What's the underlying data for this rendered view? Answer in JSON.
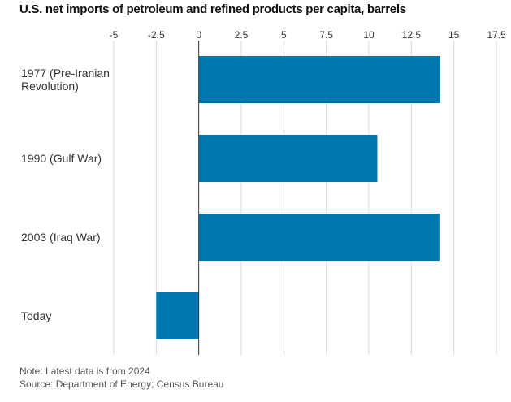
{
  "title": "U.S. net imports of petroleum and refined products per capita, barrels",
  "note": "Note: Latest data is from 2024",
  "source": "Source: Department of Energy; Census Bureau",
  "bar_color": "#0077AF",
  "chart_data": {
    "type": "bar",
    "orientation": "horizontal",
    "title": "U.S. net imports of petroleum and refined products per capita, barrels",
    "categories": [
      "1977 (Pre-Iranian Revolution)",
      "1990 (Gulf War)",
      "2003 (Iraq War)",
      "Today"
    ],
    "category_lines": [
      [
        "1977 (Pre-Iranian",
        "Revolution)"
      ],
      [
        "1990 (Gulf War)"
      ],
      [
        "2003 (Iraq War)"
      ],
      [
        "Today"
      ]
    ],
    "values": [
      14.2,
      10.5,
      14.15,
      -2.5
    ],
    "xlim": [
      -5,
      17.5
    ],
    "ticks": [
      -5,
      -2.5,
      0,
      2.5,
      5,
      7.5,
      10,
      12.5,
      15,
      17.5
    ],
    "tick_labels": [
      "-5",
      "-2.5",
      "0",
      "2.5",
      "5",
      "7.5",
      "10",
      "12.5",
      "15",
      "17.5"
    ],
    "grid": true,
    "xlabel": "",
    "ylabel": ""
  }
}
